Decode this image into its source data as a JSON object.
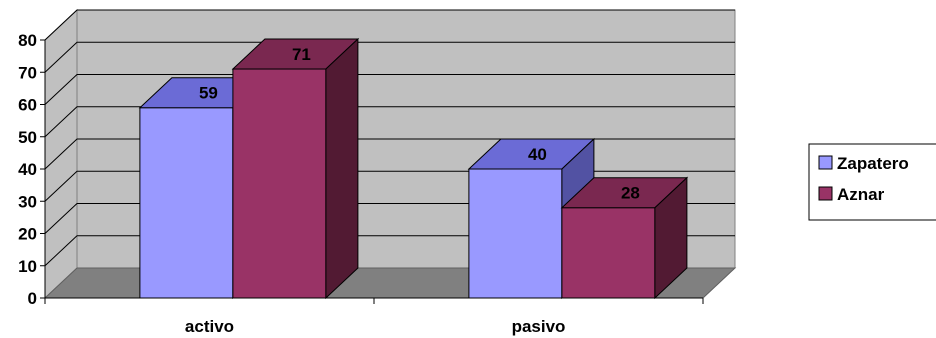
{
  "chart_data": {
    "type": "bar",
    "style": "3d-clustered-column",
    "categories": [
      "activo",
      "pasivo"
    ],
    "series": [
      {
        "name": "Zapatero",
        "values": [
          59,
          40
        ]
      },
      {
        "name": "Aznar",
        "values": [
          71,
          28
        ]
      }
    ],
    "title": "",
    "xlabel": "",
    "ylabel": "",
    "ylim": [
      0,
      80
    ],
    "ytick_step": 10,
    "grid": true,
    "legend_position": "right",
    "colors": {
      "series": [
        "#9999ff",
        "#993366"
      ],
      "series_top": [
        "#6b6bd6",
        "#7a2850"
      ],
      "series_side": [
        "#5252a3",
        "#521a33"
      ],
      "wall": "#c0c0c0",
      "floor": "#808080",
      "gridline": "#000000"
    }
  }
}
